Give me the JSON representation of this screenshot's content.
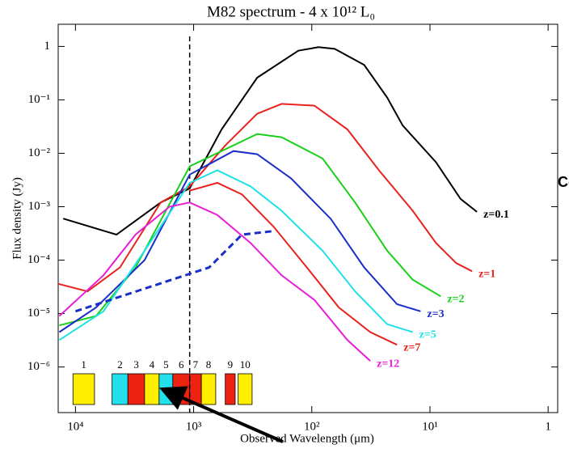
{
  "chart_data": {
    "type": "line",
    "title": "M82 spectrum  -  4 x 10¹² L₀",
    "x_label": "Observed Wavelength (μm)",
    "y_label": "Flux density (Jy)",
    "side_text": "Co",
    "xlog": true,
    "ylog": true,
    "xlim": [
      14000,
      0.83
    ],
    "ylim": [
      1.4e-07,
      2.6
    ],
    "xticks": [
      {
        "value": 10000,
        "label": "10⁴"
      },
      {
        "value": 1000,
        "label": "10³"
      },
      {
        "value": 100,
        "label": "10²"
      },
      {
        "value": 10,
        "label": "10¹"
      },
      1
    ],
    "yticks": [
      {
        "value": 1e-06,
        "label": "10⁻⁶"
      },
      {
        "value": 1e-05,
        "label": "10⁻⁵"
      },
      {
        "value": 0.0001,
        "label": "10⁻⁴"
      },
      {
        "value": 0.001,
        "label": "10⁻³"
      },
      {
        "value": 0.01,
        "label": "10⁻²"
      },
      {
        "value": 0.1,
        "label": "10⁻¹"
      },
      1
    ],
    "vline": 1080,
    "series": [
      {
        "name": "z=0.1",
        "color": "#000000",
        "x": [
          12700,
          4500,
          1900,
          1080,
          580,
          290,
          130,
          88,
          64,
          36,
          23,
          17,
          8.9,
          5.5,
          4.0
        ],
        "values": [
          0.0006,
          0.0003,
          0.0012,
          0.0022,
          0.028,
          0.26,
          0.83,
          0.97,
          0.9,
          0.45,
          0.11,
          0.033,
          0.0068,
          0.0014,
          0.0008
        ]
      },
      {
        "name": "z=1",
        "color": "#e8231e",
        "x": [
          14000,
          7900,
          4200,
          1900,
          1080,
          540,
          290,
          180,
          95,
          50,
          27,
          14,
          8.9,
          6.0,
          4.4
        ],
        "values": [
          3.6e-05,
          2.6e-05,
          7.3e-05,
          0.0012,
          0.0024,
          0.014,
          0.055,
          0.084,
          0.078,
          0.028,
          0.0048,
          0.00084,
          0.00021,
          8.8e-05,
          6.2e-05
        ]
      },
      {
        "name": "z=2",
        "color": "#19d019",
        "x": [
          13700,
          6700,
          3100,
          1080,
          290,
          180,
          81,
          43,
          23,
          14,
          8.1
        ],
        "values": [
          6e-06,
          9e-06,
          7.3e-05,
          0.0057,
          0.023,
          0.02,
          0.008,
          0.0012,
          0.00015,
          4.3e-05,
          2.1e-05
        ]
      },
      {
        "name": "z=3",
        "color": "#1a2fc8",
        "x": [
          13700,
          6700,
          2600,
          1080,
          460,
          290,
          150,
          69,
          36,
          19,
          12
        ],
        "values": [
          4.5e-06,
          1.3e-05,
          0.0001,
          0.004,
          0.011,
          0.0096,
          0.0034,
          0.00059,
          7.3e-05,
          1.5e-05,
          1.1e-05
        ]
      },
      {
        "name": "z=5",
        "color": "#1ee0e8",
        "x": [
          13700,
          5800,
          2600,
          1080,
          630,
          330,
          180,
          81,
          43,
          23,
          14
        ],
        "values": [
          3.2e-06,
          1.1e-05,
          0.00015,
          0.0028,
          0.0048,
          0.0024,
          0.00084,
          0.00015,
          2.6e-05,
          6.3e-06,
          4.5e-06
        ]
      },
      {
        "name": "z=7",
        "color": "#e8231e",
        "x": [
          1080,
          630,
          390,
          210,
          110,
          59,
          32,
          19
        ],
        "values": [
          0.002,
          0.0028,
          0.0017,
          0.00042,
          7.3e-05,
          1.3e-05,
          4.5e-06,
          2.6e-06
        ]
      },
      {
        "name": "z=12",
        "color": "#e81ed8",
        "x": [
          13700,
          5800,
          3100,
          1600,
          1080,
          630,
          330,
          180,
          95,
          50,
          32
        ],
        "values": [
          9e-06,
          5.2e-05,
          0.0003,
          0.001,
          0.0012,
          0.0007,
          0.00021,
          5.2e-05,
          1.8e-05,
          3.2e-06,
          1.3e-06
        ]
      },
      {
        "color": "#1a2fc8",
        "dash": true,
        "x": [
          10000,
          740,
          390,
          210
        ],
        "values": [
          1.1e-05,
          7.3e-05,
          0.0003,
          0.00035
        ]
      }
    ],
    "bands": [
      {
        "label": "1",
        "range": [
          10500,
          6900
        ],
        "color": "#ffee00"
      },
      {
        "label": "2",
        "range": [
          4900,
          3600
        ],
        "color": "#22e0ee"
      },
      {
        "label": "3",
        "range": [
          3600,
          2600
        ],
        "color": "#ee2211"
      },
      {
        "label": "4",
        "range": [
          2600,
          1960
        ],
        "color": "#ffee00"
      },
      {
        "label": "5",
        "range": [
          1960,
          1500
        ],
        "color": "#22e0ee"
      },
      {
        "label": "6",
        "range": [
          1500,
          1080
        ],
        "color": "#ee2211"
      },
      {
        "label": "7",
        "range": [
          1080,
          860
        ],
        "color": "#ee2211"
      },
      {
        "label": "8",
        "range": [
          860,
          650
        ],
        "color": "#ffee00"
      },
      {
        "label": "9",
        "range": [
          540,
          445
        ],
        "color": "#ee2211"
      },
      {
        "label": "10",
        "range": [
          420,
          320
        ],
        "color": "#ffee00"
      }
    ]
  }
}
